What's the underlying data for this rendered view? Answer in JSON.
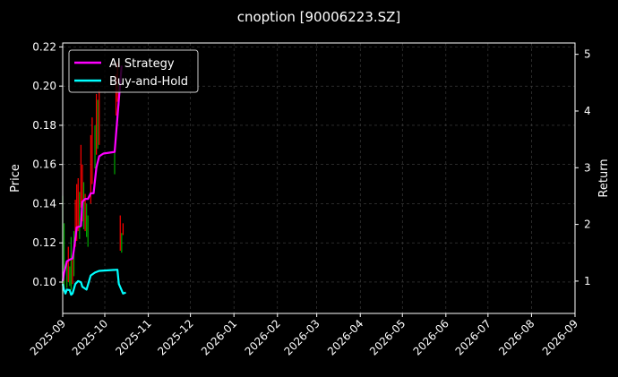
{
  "chart_data": {
    "type": "line",
    "title": "cnoption [90006223.SZ]",
    "ylabel_left": "Price",
    "ylabel_right": "Return",
    "left_axis": {
      "ylim": [
        0.084,
        0.222
      ],
      "ticks": [
        0.1,
        0.12,
        0.14,
        0.16,
        0.18,
        0.2,
        0.22
      ],
      "tick_labels": [
        "0.10",
        "0.12",
        "0.14",
        "0.16",
        "0.18",
        "0.20",
        "0.22"
      ]
    },
    "right_axis": {
      "ylim": [
        0.43,
        5.2
      ],
      "ticks": [
        1,
        2,
        3,
        4,
        5
      ],
      "tick_labels": [
        "1",
        "2",
        "3",
        "4",
        "5"
      ]
    },
    "x_axis": {
      "range": [
        "2025-09-01",
        "2026-09-01"
      ],
      "tick_labels": [
        "2025-09",
        "2025-10",
        "2025-11",
        "2025-12",
        "2026-01",
        "2026-02",
        "2026-03",
        "2026-04",
        "2026-05",
        "2026-06",
        "2026-07",
        "2026-08",
        "2026-09"
      ]
    },
    "grid": true,
    "legend_position": "top-left",
    "colors": {
      "background": "#000000",
      "strategy": "#ff00ff",
      "buyhold": "#00ffff",
      "candle_up": "#ff0000",
      "candle_down": "#00aa00",
      "grid": "#444444",
      "text": "#ffffff"
    },
    "series": [
      {
        "name": "AI Strategy",
        "axis": "right",
        "color": "#ff00ff",
        "points": [
          [
            "2025-09-01",
            1.0
          ],
          [
            "2025-09-02",
            1.15
          ],
          [
            "2025-09-04",
            1.35
          ],
          [
            "2025-09-06",
            1.38
          ],
          [
            "2025-09-08",
            1.4
          ],
          [
            "2025-09-09",
            1.55
          ],
          [
            "2025-09-11",
            1.95
          ],
          [
            "2025-09-14",
            1.97
          ],
          [
            "2025-09-15",
            2.4
          ],
          [
            "2025-09-17",
            2.45
          ],
          [
            "2025-09-19",
            2.45
          ],
          [
            "2025-09-21",
            2.55
          ],
          [
            "2025-09-23",
            2.55
          ],
          [
            "2025-09-25",
            3.0
          ],
          [
            "2025-09-27",
            3.2
          ],
          [
            "2025-09-30",
            3.25
          ],
          [
            "2025-10-08",
            3.28
          ],
          [
            "2025-10-11",
            4.2
          ],
          [
            "2025-10-13",
            4.8
          ]
        ]
      },
      {
        "name": "Buy-and-Hold",
        "axis": "right",
        "color": "#00ffff",
        "points": [
          [
            "2025-09-01",
            0.95
          ],
          [
            "2025-09-02",
            0.84
          ],
          [
            "2025-09-03",
            0.78
          ],
          [
            "2025-09-04",
            0.85
          ],
          [
            "2025-09-06",
            0.84
          ],
          [
            "2025-09-07",
            0.76
          ],
          [
            "2025-09-08",
            0.78
          ],
          [
            "2025-09-10",
            0.95
          ],
          [
            "2025-09-12",
            1.0
          ],
          [
            "2025-09-14",
            0.98
          ],
          [
            "2025-09-15",
            0.9
          ],
          [
            "2025-09-18",
            0.85
          ],
          [
            "2025-09-21",
            1.1
          ],
          [
            "2025-09-24",
            1.15
          ],
          [
            "2025-09-27",
            1.18
          ],
          [
            "2025-10-10",
            1.2
          ],
          [
            "2025-10-11",
            0.95
          ],
          [
            "2025-10-14",
            0.78
          ],
          [
            "2025-10-16",
            0.8
          ]
        ]
      }
    ],
    "candles": [
      {
        "date": "2025-09-01",
        "low": 0.094,
        "high": 0.144,
        "up": false
      },
      {
        "date": "2025-09-02",
        "low": 0.096,
        "high": 0.13,
        "up": false
      },
      {
        "date": "2025-09-04",
        "low": 0.097,
        "high": 0.11,
        "up": false
      },
      {
        "date": "2025-09-05",
        "low": 0.1,
        "high": 0.118,
        "up": true
      },
      {
        "date": "2025-09-06",
        "low": 0.098,
        "high": 0.108,
        "up": false
      },
      {
        "date": "2025-09-07",
        "low": 0.096,
        "high": 0.123,
        "up": false
      },
      {
        "date": "2025-09-08",
        "low": 0.099,
        "high": 0.113,
        "up": true
      },
      {
        "date": "2025-09-09",
        "low": 0.103,
        "high": 0.126,
        "up": false
      },
      {
        "date": "2025-09-10",
        "low": 0.118,
        "high": 0.142,
        "up": true
      },
      {
        "date": "2025-09-11",
        "low": 0.121,
        "high": 0.15,
        "up": true
      },
      {
        "date": "2025-09-12",
        "low": 0.126,
        "high": 0.153,
        "up": true
      },
      {
        "date": "2025-09-13",
        "low": 0.122,
        "high": 0.146,
        "up": false
      },
      {
        "date": "2025-09-14",
        "low": 0.138,
        "high": 0.17,
        "up": true
      },
      {
        "date": "2025-09-15",
        "low": 0.131,
        "high": 0.16,
        "up": true
      },
      {
        "date": "2025-09-16",
        "low": 0.127,
        "high": 0.151,
        "up": false
      },
      {
        "date": "2025-09-17",
        "low": 0.126,
        "high": 0.145,
        "up": true
      },
      {
        "date": "2025-09-18",
        "low": 0.123,
        "high": 0.14,
        "up": false
      },
      {
        "date": "2025-09-19",
        "low": 0.118,
        "high": 0.134,
        "up": false
      },
      {
        "date": "2025-09-21",
        "low": 0.14,
        "high": 0.175,
        "up": true
      },
      {
        "date": "2025-09-22",
        "low": 0.15,
        "high": 0.184,
        "up": true
      },
      {
        "date": "2025-09-24",
        "low": 0.158,
        "high": 0.18,
        "up": false
      },
      {
        "date": "2025-09-25",
        "low": 0.165,
        "high": 0.196,
        "up": true
      },
      {
        "date": "2025-09-26",
        "low": 0.168,
        "high": 0.193,
        "up": false
      },
      {
        "date": "2025-09-27",
        "low": 0.17,
        "high": 0.198,
        "up": true
      },
      {
        "date": "2025-10-08",
        "low": 0.155,
        "high": 0.166,
        "up": false
      },
      {
        "date": "2025-10-09",
        "low": 0.185,
        "high": 0.206,
        "up": true
      },
      {
        "date": "2025-10-10",
        "low": 0.192,
        "high": 0.212,
        "up": true
      },
      {
        "date": "2025-10-11",
        "low": 0.19,
        "high": 0.204,
        "up": false
      },
      {
        "date": "2025-10-12",
        "low": 0.116,
        "high": 0.134,
        "up": true
      },
      {
        "date": "2025-10-13",
        "low": 0.115,
        "high": 0.125,
        "up": false
      },
      {
        "date": "2025-10-14",
        "low": 0.124,
        "high": 0.13,
        "up": true
      }
    ]
  }
}
